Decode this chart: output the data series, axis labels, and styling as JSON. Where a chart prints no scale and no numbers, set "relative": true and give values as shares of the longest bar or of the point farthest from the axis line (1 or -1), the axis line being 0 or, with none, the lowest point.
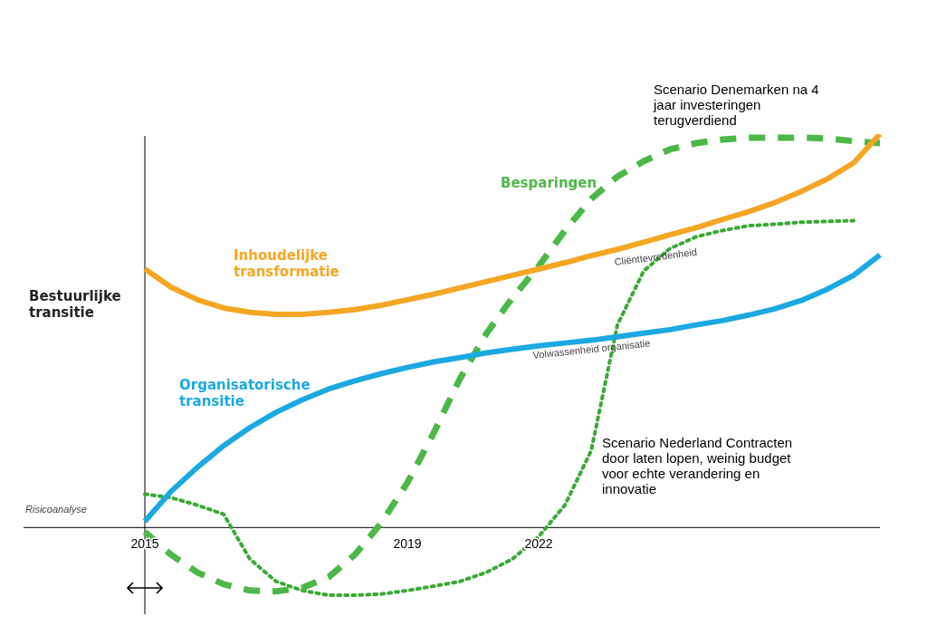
{
  "chart_data": {
    "type": "line",
    "relative": true,
    "ylabel": "Bestuurlijke transitie",
    "legend": false,
    "marker": "none",
    "categories": [
      "2015",
      null,
      null,
      null,
      null,
      null,
      null,
      null,
      null,
      null,
      "2019",
      null,
      null,
      null,
      null,
      "2022",
      null,
      null,
      null,
      null,
      null,
      null,
      null,
      null,
      null,
      null,
      null,
      null,
      null
    ],
    "series": [
      {
        "name": "Inhoudelijke transformatie",
        "color": "#f5a623",
        "line_style": "solid",
        "values": [
          0.657,
          0.611,
          0.579,
          0.558,
          0.547,
          0.542,
          0.542,
          0.547,
          0.554,
          0.565,
          0.579,
          0.593,
          0.609,
          0.625,
          0.641,
          0.657,
          0.673,
          0.691,
          0.707,
          0.725,
          0.744,
          0.762,
          0.783,
          0.803,
          0.826,
          0.854,
          0.886,
          0.927,
          1
        ]
      },
      {
        "name": "Organisatorische transitie",
        "color": "#1ba9e1",
        "line_style": "solid",
        "values": [
          0.016,
          0.092,
          0.153,
          0.208,
          0.254,
          0.293,
          0.325,
          0.352,
          0.373,
          0.391,
          0.407,
          0.421,
          0.432,
          0.444,
          0.453,
          0.462,
          0.469,
          0.476,
          0.485,
          0.494,
          0.503,
          0.515,
          0.526,
          0.54,
          0.556,
          0.577,
          0.606,
          0.641,
          0.693
        ]
      },
      {
        "name": "Besparingen",
        "color": "#4cb847",
        "line_style": "dashed",
        "values": [
          -0.011,
          -0.069,
          -0.114,
          -0.144,
          -0.16,
          -0.162,
          -0.153,
          -0.126,
          -0.069,
          0.011,
          0.114,
          0.24,
          0.378,
          0.492,
          0.584,
          0.664,
          0.755,
          0.835,
          0.892,
          0.931,
          0.961,
          0.977,
          0.986,
          0.991,
          0.991,
          0.991,
          0.989,
          0.982,
          0.977
        ]
      },
      {
        "color": "#3aaa35",
        "line_style": "dotted",
        "values": [
          0.085,
          0.076,
          0.057,
          0.034,
          -0.08,
          -0.137,
          -0.16,
          -0.172,
          -0.172,
          -0.169,
          -0.16,
          -0.149,
          -0.137,
          -0.114,
          -0.08,
          -0.023,
          0.057,
          0.195,
          0.515,
          0.652,
          0.709,
          0.739,
          0.755,
          0.767,
          0.771,
          0.776,
          0.778,
          0.78,
          null
        ]
      }
    ],
    "annotations": [
      "Cliënttevredenheid",
      "Volwassenheid organisatie",
      "Risicoanalyse",
      "Scenario Denemarken na 4 jaar investeringen terugverdiend",
      "Scenario Nederland Contracten door laten lopen, weinig budget voor echte verandering en innovatie"
    ]
  }
}
